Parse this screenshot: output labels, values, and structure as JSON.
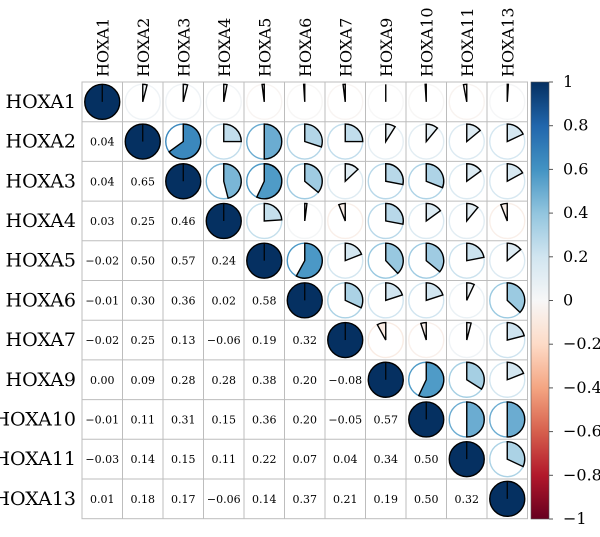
{
  "chart_data": {
    "type": "heatmap",
    "variables": [
      "HOXA1",
      "HOXA2",
      "HOXA3",
      "HOXA4",
      "HOXA5",
      "HOXA6",
      "HOXA7",
      "HOXA9",
      "HOXA10",
      "HOXA11",
      "HOXA13"
    ],
    "matrix": [
      [
        1.0,
        0.04,
        0.04,
        0.03,
        -0.02,
        -0.01,
        -0.02,
        0.0,
        -0.01,
        -0.03,
        0.01
      ],
      [
        0.04,
        1.0,
        0.65,
        0.25,
        0.5,
        0.3,
        0.25,
        0.09,
        0.11,
        0.14,
        0.18
      ],
      [
        0.04,
        0.65,
        1.0,
        0.46,
        0.57,
        0.36,
        0.13,
        0.28,
        0.31,
        0.15,
        0.17
      ],
      [
        0.03,
        0.25,
        0.46,
        1.0,
        0.24,
        0.02,
        -0.06,
        0.28,
        0.15,
        0.11,
        -0.06
      ],
      [
        -0.02,
        0.5,
        0.57,
        0.24,
        1.0,
        0.58,
        0.19,
        0.38,
        0.36,
        0.22,
        0.14
      ],
      [
        -0.01,
        0.3,
        0.36,
        0.02,
        0.58,
        1.0,
        0.32,
        0.2,
        0.2,
        0.07,
        0.37
      ],
      [
        -0.02,
        0.25,
        0.13,
        -0.06,
        0.19,
        0.32,
        1.0,
        -0.08,
        -0.05,
        0.04,
        0.21
      ],
      [
        0.0,
        0.09,
        0.28,
        0.28,
        0.38,
        0.2,
        -0.08,
        1.0,
        0.57,
        0.34,
        0.19
      ],
      [
        -0.01,
        0.11,
        0.31,
        0.15,
        0.36,
        0.2,
        -0.05,
        0.57,
        1.0,
        0.5,
        0.5
      ],
      [
        -0.03,
        0.14,
        0.15,
        0.11,
        0.22,
        0.07,
        0.04,
        0.34,
        0.5,
        1.0,
        0.32
      ],
      [
        0.01,
        0.18,
        0.17,
        -0.06,
        0.14,
        0.37,
        0.21,
        0.19,
        0.5,
        0.32,
        1.0
      ]
    ],
    "lower_triangle": "number",
    "upper_triangle": "pie",
    "colorbar": {
      "range": [
        -1,
        1
      ],
      "ticks": [
        "1",
        "0.8",
        "0.6",
        "0.4",
        "0.2",
        "0",
        "−0.2",
        "−0.4",
        "−0.6",
        "−0.8",
        "−1"
      ],
      "colors": {
        "positive": "#053061",
        "mid": "#f7f7f7",
        "negative": "#67001f"
      },
      "placement": "right"
    }
  }
}
